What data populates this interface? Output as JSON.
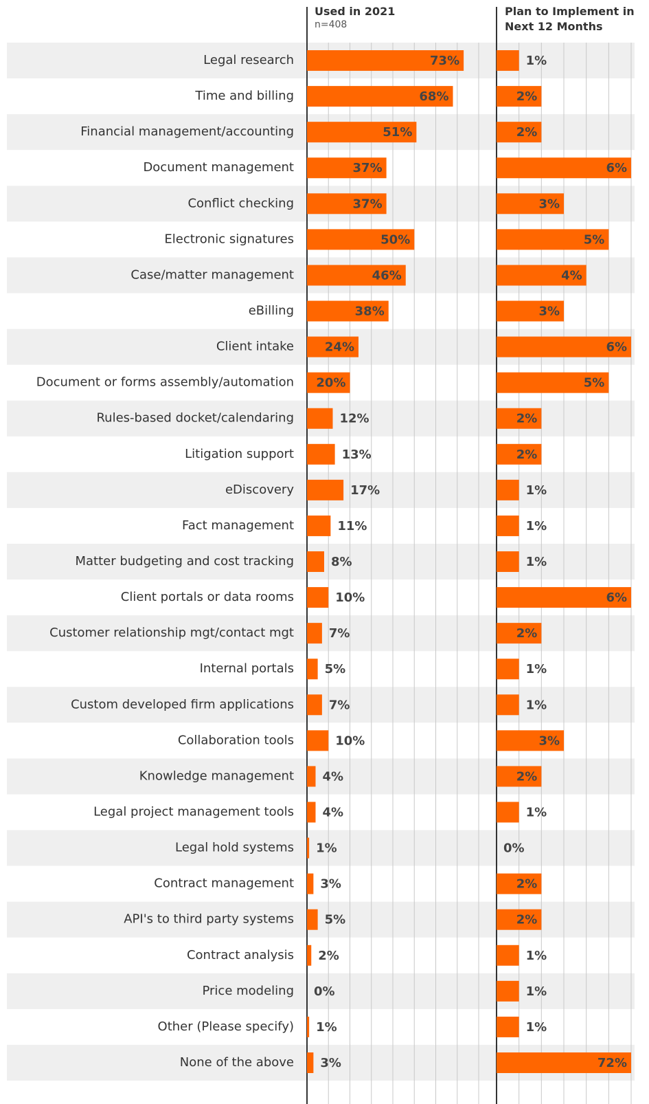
{
  "chart_data": {
    "type": "bar",
    "orientation": "horizontal",
    "subtitle": "n=408",
    "categories": [
      "Legal research",
      "Time and billing",
      "Financial management/accounting",
      "Document management",
      "Conflict checking",
      "Electronic signatures",
      "Case/matter management",
      "eBilling",
      "Client intake",
      "Document or forms assembly/automation",
      "Rules-based docket/calendaring",
      "Litigation support",
      "eDiscovery",
      "Fact management",
      "Matter budgeting and cost tracking",
      "Client portals or data rooms",
      "Customer relationship mgt/contact mgt",
      "Internal portals",
      "Custom developed firm applications",
      "Collaboration tools",
      "Knowledge management",
      "Legal project management tools",
      "Legal hold systems",
      "Contract management",
      "API's to third party systems",
      "Contract analysis",
      "Price modeling",
      "Other (Please specify)",
      "None of the above"
    ],
    "series": [
      {
        "name": "Used in 2021",
        "color": "#ff6600",
        "xlim": [
          0,
          80
        ],
        "xticks": [
          0,
          10,
          20,
          30,
          40,
          50,
          60,
          70,
          80
        ],
        "values": [
          73,
          68,
          51,
          37,
          37,
          50,
          46,
          38,
          24,
          20,
          12,
          13,
          17,
          11,
          8,
          10,
          7,
          5,
          7,
          10,
          4,
          4,
          1,
          3,
          5,
          2,
          0,
          1,
          3
        ],
        "value_labels": [
          "73%",
          "68%",
          "51%",
          "37%",
          "37%",
          "50%",
          "46%",
          "38%",
          "24%",
          "20%",
          "12%",
          "13%",
          "17%",
          "11%",
          "8%",
          "10%",
          "7%",
          "5%",
          "7%",
          "10%",
          "4%",
          "4%",
          "1%",
          "3%",
          "5%",
          "2%",
          "0%",
          "1%",
          "3%"
        ]
      },
      {
        "name": "Plan to Implement in Next 12 Months",
        "color": "#ff6600",
        "xlim": [
          0,
          6
        ],
        "xticks": [
          0,
          1,
          2,
          3,
          4,
          5,
          6
        ],
        "values": [
          1,
          2,
          2,
          6,
          3,
          5,
          4,
          3,
          6,
          5,
          2,
          2,
          1,
          1,
          1,
          6,
          2,
          1,
          1,
          3,
          2,
          1,
          0,
          2,
          2,
          1,
          1,
          1,
          72
        ],
        "value_labels": [
          "1%",
          "2%",
          "2%",
          "6%",
          "3%",
          "5%",
          "4%",
          "3%",
          "6%",
          "5%",
          "2%",
          "2%",
          "1%",
          "1%",
          "1%",
          "6%",
          "2%",
          "1%",
          "1%",
          "3%",
          "2%",
          "1%",
          "0%",
          "2%",
          "2%",
          "1%",
          "1%",
          "1%",
          "72%"
        ]
      }
    ],
    "grid": true
  }
}
